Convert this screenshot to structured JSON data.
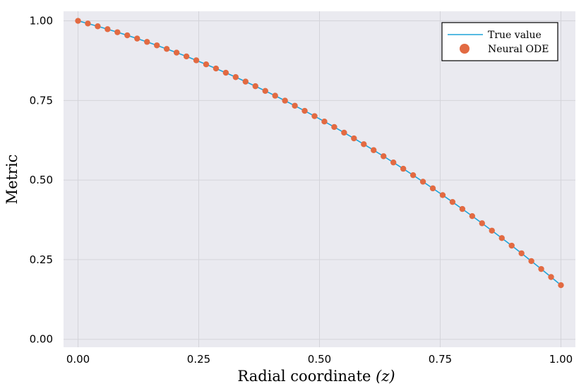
{
  "chart_data": {
    "type": "line",
    "title": "",
    "xlabel": "Radial coordinate (z)",
    "xlabel_plain": "Radial coordinate ",
    "xlabel_var": "(z)",
    "ylabel": "Metric",
    "xlim": [
      -0.03,
      1.03
    ],
    "ylim": [
      -0.025,
      1.03
    ],
    "x_ticks": [
      "0.00",
      "0.25",
      "0.50",
      "0.75",
      "1.00"
    ],
    "y_ticks": [
      "0.00",
      "0.25",
      "0.50",
      "0.75",
      "1.00"
    ],
    "grid": true,
    "legend_position": "top-right",
    "colors": {
      "background": "#EAEAF0",
      "grid": "#D4D4DA",
      "true_value": "#1FA3D8",
      "neural_ode": "#E26A42"
    },
    "series": [
      {
        "name": "True value",
        "kind": "line",
        "x": [
          0.0,
          0.0204,
          0.0408,
          0.0612,
          0.0816,
          0.102,
          0.1224,
          0.1429,
          0.1633,
          0.1837,
          0.2041,
          0.2245,
          0.2449,
          0.2653,
          0.2857,
          0.3061,
          0.3265,
          0.3469,
          0.3673,
          0.3878,
          0.4082,
          0.4286,
          0.449,
          0.4694,
          0.4898,
          0.5102,
          0.5306,
          0.551,
          0.5714,
          0.5918,
          0.6122,
          0.6327,
          0.6531,
          0.6735,
          0.6939,
          0.7143,
          0.7347,
          0.7551,
          0.7755,
          0.7959,
          0.8163,
          0.8367,
          0.8571,
          0.8776,
          0.898,
          0.9184,
          0.9388,
          0.9592,
          0.9796,
          1.0
        ],
        "y": [
          1.0,
          0.9916,
          0.9829,
          0.9738,
          0.9643,
          0.9545,
          0.9444,
          0.9339,
          0.923,
          0.9118,
          0.9002,
          0.8883,
          0.876,
          0.8633,
          0.8503,
          0.837,
          0.8233,
          0.8092,
          0.7948,
          0.78,
          0.7649,
          0.7494,
          0.7335,
          0.7173,
          0.7008,
          0.6838,
          0.6666,
          0.6489,
          0.6309,
          0.6126,
          0.5939,
          0.5748,
          0.5553,
          0.5355,
          0.5154,
          0.4949,
          0.474,
          0.4528,
          0.4312,
          0.4092,
          0.3869,
          0.3643,
          0.3412,
          0.3178,
          0.2941,
          0.27,
          0.2455,
          0.2207,
          0.1955,
          0.1699
        ]
      },
      {
        "name": "Neural ODE",
        "kind": "scatter",
        "x": [
          0.0,
          0.0204,
          0.0408,
          0.0612,
          0.0816,
          0.102,
          0.1224,
          0.1429,
          0.1633,
          0.1837,
          0.2041,
          0.2245,
          0.2449,
          0.2653,
          0.2857,
          0.3061,
          0.3265,
          0.3469,
          0.3673,
          0.3878,
          0.4082,
          0.4286,
          0.449,
          0.4694,
          0.4898,
          0.5102,
          0.5306,
          0.551,
          0.5714,
          0.5918,
          0.6122,
          0.6327,
          0.6531,
          0.6735,
          0.6939,
          0.7143,
          0.7347,
          0.7551,
          0.7755,
          0.7959,
          0.8163,
          0.8367,
          0.8571,
          0.8776,
          0.898,
          0.9184,
          0.9388,
          0.9592,
          0.9796,
          1.0
        ],
        "y": [
          1.0,
          0.9916,
          0.9829,
          0.9738,
          0.9643,
          0.9545,
          0.9444,
          0.9339,
          0.923,
          0.9118,
          0.9002,
          0.8883,
          0.876,
          0.8633,
          0.8503,
          0.837,
          0.8233,
          0.8092,
          0.7948,
          0.78,
          0.7649,
          0.7494,
          0.7335,
          0.7173,
          0.7008,
          0.6838,
          0.6666,
          0.6489,
          0.6309,
          0.6126,
          0.5939,
          0.5748,
          0.5553,
          0.5355,
          0.5154,
          0.4949,
          0.474,
          0.4528,
          0.4312,
          0.4092,
          0.3869,
          0.3643,
          0.3412,
          0.3178,
          0.2941,
          0.27,
          0.2455,
          0.2207,
          0.1955,
          0.1699
        ]
      }
    ]
  }
}
